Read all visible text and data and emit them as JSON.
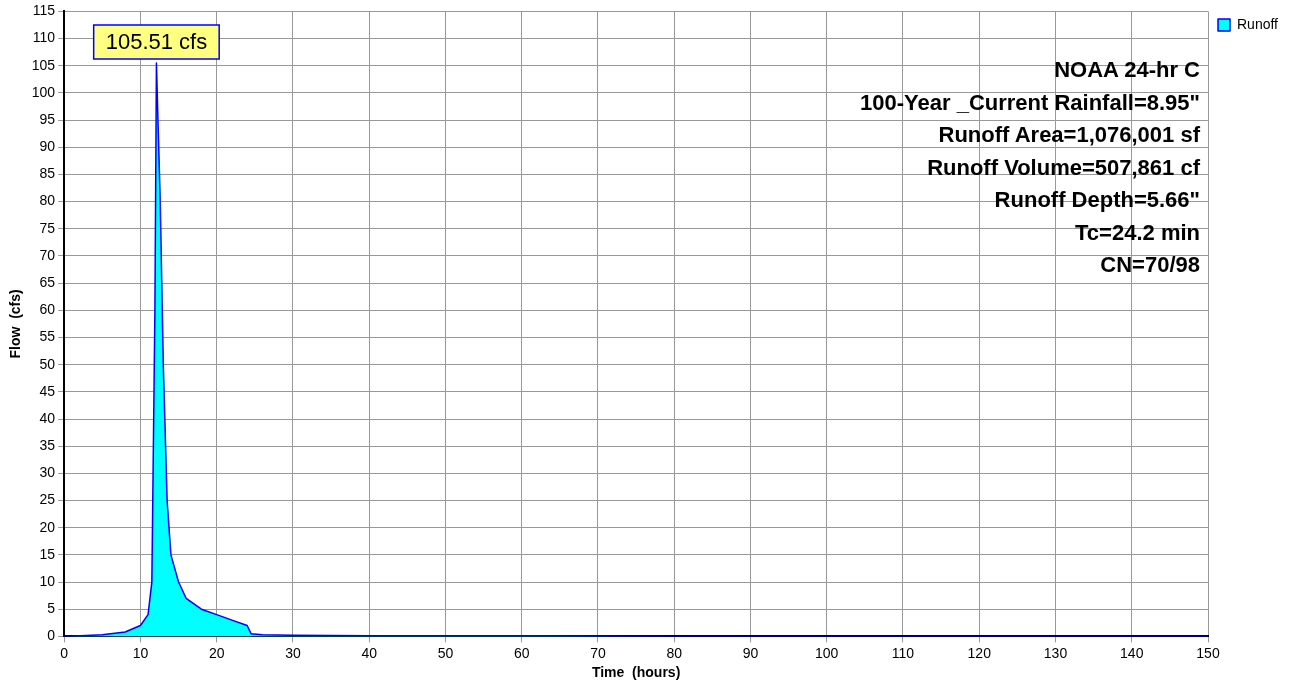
{
  "chart_data": {
    "type": "area",
    "xlabel": "Time  (hours)",
    "ylabel": "Flow  (cfs)",
    "x": [
      0,
      5,
      8,
      10,
      11,
      11.5,
      11.9,
      12.1,
      12.3,
      12.6,
      13,
      13.5,
      14,
      15,
      16,
      18,
      20,
      22,
      24,
      24.5,
      26,
      30,
      40,
      60,
      80,
      100,
      120,
      150
    ],
    "series": [
      {
        "name": "Runoff",
        "color": "#00ffff",
        "values": [
          0,
          0.3,
          0.8,
          2,
          4,
          10,
          60,
          105.51,
          95,
          80,
          50,
          25,
          15,
          10,
          7,
          5,
          4,
          3,
          2,
          0.5,
          0.3,
          0.2,
          0.1,
          0.1,
          0,
          0,
          0,
          0
        ]
      }
    ],
    "xlim": [
      0,
      150
    ],
    "xticks": [
      0,
      10,
      20,
      30,
      40,
      50,
      60,
      70,
      80,
      90,
      100,
      110,
      120,
      130,
      140,
      150
    ],
    "ylim": [
      0,
      115
    ],
    "yticks": [
      0,
      5,
      10,
      15,
      20,
      25,
      30,
      35,
      40,
      45,
      50,
      55,
      60,
      65,
      70,
      75,
      80,
      85,
      90,
      95,
      100,
      105,
      110,
      115
    ],
    "grid": true,
    "legend": "top right",
    "marker": "none",
    "annotations": [
      {
        "text": "105.51 cfs",
        "x": 12.1,
        "y": 105.51
      },
      "NOAA 24-hr C",
      "100-Year _Current Rainfall=8.95\"",
      "Runoff Area=1,076,001 sf",
      "Runoff Volume=507,861 cf",
      "Runoff Depth=5.66\"",
      "Tc=24.2 min",
      "CN=70/98"
    ]
  }
}
